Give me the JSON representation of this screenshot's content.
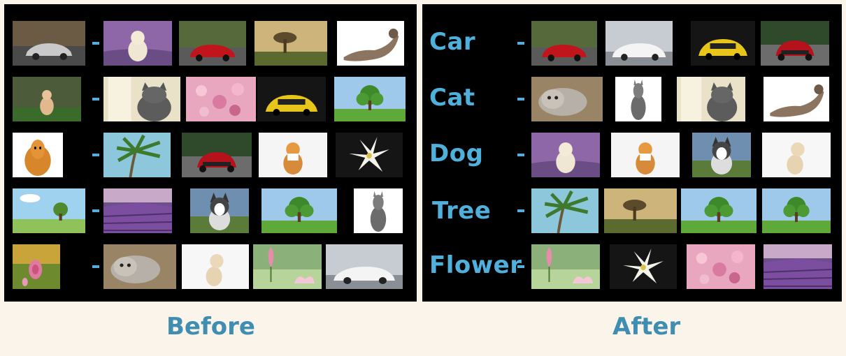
{
  "captions": {
    "before": "Before",
    "after": "After"
  },
  "labels": [
    "Car",
    "Cat",
    "Dog",
    "Tree",
    "Flower"
  ],
  "dash": "-",
  "colors": {
    "panel": "#000000",
    "label": "#4fb0dc",
    "caption": "#3f8eb2",
    "background": "#faf4ea"
  },
  "before_rows": [
    [
      "car-silver-road",
      "dog-in-lavender",
      "car-red-road",
      "tree-sunset",
      "cat-white-bg"
    ],
    [
      "cat-in-grass",
      "cat-gray-window",
      "flowers-pink-blossom",
      "car-yellow",
      "tree-green-field"
    ],
    [
      "dog-pomeranian",
      "tree-palm",
      "car-red-front",
      "dog-pomeranian-white-bg",
      "flower-white-lily"
    ],
    [
      "tree-meadow",
      "lavender-field",
      "dog-husky",
      "tree-green-field",
      "cat-sitting"
    ],
    [
      "flower-pink-rose",
      "cat-lying",
      "dog-puppy-white-bg",
      "flower-lotus",
      "car-white-sports"
    ]
  ],
  "after_rows": [
    [
      "car-red-road",
      "car-white-sports",
      "car-yellow",
      "car-red-front"
    ],
    [
      "cat-lying",
      "cat-sitting",
      "cat-gray-window",
      "cat-white-bg"
    ],
    [
      "dog-in-lavender",
      "dog-pomeranian-white-bg",
      "dog-husky",
      "dog-puppy-white-bg"
    ],
    [
      "tree-palm",
      "tree-sunset",
      "tree-green-field",
      "tree-green-field"
    ],
    [
      "flower-lotus",
      "flower-white-lily",
      "flowers-pink-blossom",
      "lavender-field"
    ]
  ]
}
